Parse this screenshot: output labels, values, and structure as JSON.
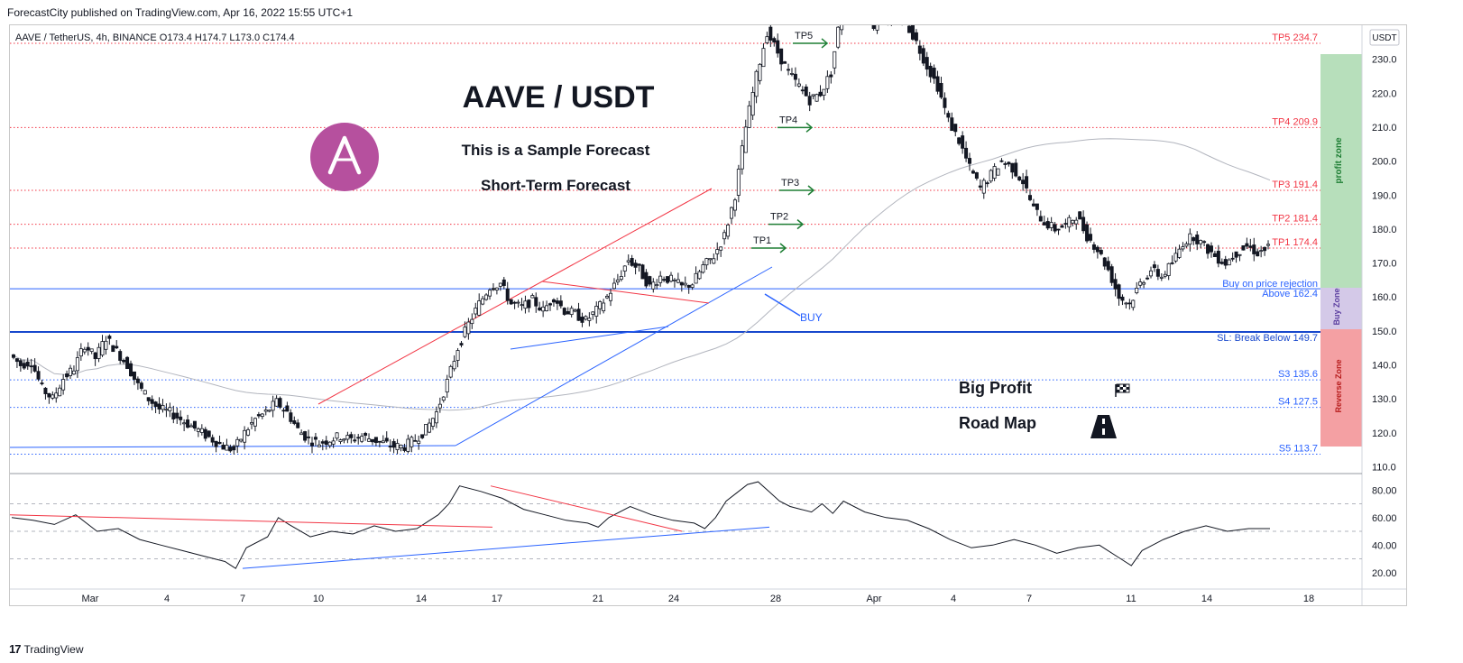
{
  "publisher_line": "ForecastCity published on TradingView.com, Apr 16, 2022 15:55 UTC+1",
  "symbol_header": "AAVE / TetherUS, 4h, BINANCE  O173.4  H174.7  L173.0  C174.4",
  "currency_badge": "USDT",
  "footer_brand": "TradingView",
  "colors": {
    "up": "#131722",
    "down": "#131722",
    "resistance_line": "#f23645",
    "support_line": "#2962ff",
    "tp_arrow": "#1e7e34",
    "profit_zone": "#b7dfbb",
    "buy_zone": "#d4c9e8",
    "reverse_zone": "#f4a0a3",
    "ma_line": "#b2b5be",
    "rsi_line": "#131722",
    "aave_logo": "#b6509e"
  },
  "annotations": {
    "title": "AAVE / USDT",
    "subtitle_1": "This is a Sample Forecast",
    "subtitle_2": "Short-Term Forecast",
    "big_profit": "Big Profit",
    "road_map": "Road Map",
    "buy_label": "BUY",
    "tp_labels": [
      "TP1",
      "TP2",
      "TP3",
      "TP4",
      "TP5"
    ],
    "buy_on_rejection": "Buy on price rejection",
    "above_level": "Above 162.4",
    "sl_text": "SL: Break Below 149.7",
    "zone_profit": "profit zone",
    "zone_buy": "Buy Zone",
    "zone_reverse": "Reverse Zone"
  },
  "chart_data": {
    "type": "candlestick",
    "x_ticks": [
      "Mar",
      "4",
      "7",
      "10",
      "14",
      "17",
      "21",
      "24",
      "28",
      "Apr",
      "4",
      "7",
      "11",
      "14",
      "18"
    ],
    "y_ticks": [
      "230.0",
      "220.0",
      "210.0",
      "200.0",
      "190.0",
      "180.0",
      "170.0",
      "160.0",
      "150.0",
      "140.0",
      "130.0",
      "120.0",
      "110.0"
    ],
    "ylim": [
      108,
      240
    ],
    "levels": [
      {
        "label": "TP5 234.7",
        "value": 234.7,
        "color": "#f23645",
        "style": "dotted"
      },
      {
        "label": "TP4 209.9",
        "value": 209.9,
        "color": "#f23645",
        "style": "dotted"
      },
      {
        "label": "TP3 191.4",
        "value": 191.4,
        "color": "#f23645",
        "style": "dotted"
      },
      {
        "label": "TP2 181.4",
        "value": 181.4,
        "color": "#f23645",
        "style": "dotted"
      },
      {
        "label": "TP1 174.4",
        "value": 174.4,
        "color": "#f23645",
        "style": "dotted"
      },
      {
        "label": "",
        "value": 162.4,
        "color": "#2962ff",
        "style": "solid"
      },
      {
        "label": "",
        "value": 149.7,
        "color": "#1848cc",
        "style": "thick"
      },
      {
        "label": "S3 135.6",
        "value": 135.6,
        "color": "#2962ff",
        "style": "dotted"
      },
      {
        "label": "S4 127.5",
        "value": 127.5,
        "color": "#2962ff",
        "style": "dotted"
      },
      {
        "label": "S5 113.7",
        "value": 113.7,
        "color": "#2962ff",
        "style": "dotted"
      }
    ],
    "price_path": [
      [
        0,
        143
      ],
      [
        2,
        140
      ],
      [
        4,
        141
      ],
      [
        6,
        133
      ],
      [
        8,
        130
      ],
      [
        10,
        136
      ],
      [
        12,
        139
      ],
      [
        14,
        146
      ],
      [
        16,
        142
      ],
      [
        18,
        148
      ],
      [
        20,
        144
      ],
      [
        22,
        140
      ],
      [
        24,
        134
      ],
      [
        26,
        130
      ],
      [
        28,
        127
      ],
      [
        30,
        126
      ],
      [
        32,
        124
      ],
      [
        34,
        122
      ],
      [
        36,
        120
      ],
      [
        38,
        118
      ],
      [
        40,
        116
      ],
      [
        42,
        115
      ],
      [
        44,
        120
      ],
      [
        46,
        124
      ],
      [
        48,
        126
      ],
      [
        50,
        129
      ],
      [
        52,
        126
      ],
      [
        54,
        121
      ],
      [
        56,
        118
      ],
      [
        58,
        117
      ],
      [
        60,
        118
      ],
      [
        62,
        119
      ],
      [
        64,
        118
      ],
      [
        66,
        119
      ],
      [
        68,
        118
      ],
      [
        70,
        117
      ],
      [
        72,
        116
      ],
      [
        74,
        116
      ],
      [
        76,
        118
      ],
      [
        78,
        121
      ],
      [
        80,
        126
      ],
      [
        82,
        135
      ],
      [
        84,
        145
      ],
      [
        86,
        152
      ],
      [
        88,
        158
      ],
      [
        90,
        163
      ],
      [
        92,
        164
      ],
      [
        94,
        158
      ],
      [
        96,
        157
      ],
      [
        98,
        159
      ],
      [
        100,
        156
      ],
      [
        102,
        160
      ],
      [
        104,
        156
      ],
      [
        106,
        155
      ],
      [
        108,
        153
      ],
      [
        110,
        156
      ],
      [
        112,
        160
      ],
      [
        114,
        165
      ],
      [
        116,
        171
      ],
      [
        118,
        168
      ],
      [
        120,
        163
      ],
      [
        122,
        166
      ],
      [
        124,
        165
      ],
      [
        126,
        163
      ],
      [
        128,
        164
      ],
      [
        130,
        169
      ],
      [
        132,
        172
      ],
      [
        134,
        178
      ],
      [
        136,
        190
      ],
      [
        138,
        210
      ],
      [
        140,
        225
      ],
      [
        142,
        238
      ],
      [
        144,
        232
      ],
      [
        146,
        226
      ],
      [
        148,
        222
      ],
      [
        150,
        218
      ],
      [
        152,
        220
      ],
      [
        154,
        226
      ],
      [
        156,
        245
      ],
      [
        158,
        248
      ],
      [
        160,
        245
      ],
      [
        162,
        240
      ],
      [
        164,
        242
      ],
      [
        166,
        243
      ],
      [
        168,
        241
      ],
      [
        170,
        235
      ],
      [
        172,
        228
      ],
      [
        174,
        222
      ],
      [
        176,
        212
      ],
      [
        178,
        206
      ],
      [
        180,
        198
      ],
      [
        182,
        192
      ],
      [
        184,
        196
      ],
      [
        186,
        200
      ],
      [
        188,
        198
      ],
      [
        190,
        194
      ],
      [
        192,
        186
      ],
      [
        194,
        182
      ],
      [
        196,
        180
      ],
      [
        198,
        181
      ],
      [
        200,
        184
      ],
      [
        202,
        178
      ],
      [
        204,
        174
      ],
      [
        206,
        168
      ],
      [
        208,
        160
      ],
      [
        210,
        158
      ],
      [
        212,
        164
      ],
      [
        214,
        168
      ],
      [
        216,
        166
      ],
      [
        218,
        170
      ],
      [
        220,
        176
      ],
      [
        222,
        178
      ],
      [
        224,
        175
      ],
      [
        226,
        172
      ],
      [
        228,
        170
      ],
      [
        230,
        173
      ],
      [
        232,
        175
      ],
      [
        234,
        173
      ],
      [
        236,
        174.4
      ]
    ],
    "rsi": {
      "y_ticks": [
        "80.00",
        "60.00",
        "40.00",
        "20.00"
      ],
      "ylim": [
        10,
        90
      ],
      "guides": [
        70,
        50,
        30
      ],
      "values": [
        [
          0,
          60
        ],
        [
          4,
          58
        ],
        [
          8,
          55
        ],
        [
          12,
          62
        ],
        [
          16,
          50
        ],
        [
          20,
          52
        ],
        [
          24,
          44
        ],
        [
          28,
          40
        ],
        [
          32,
          36
        ],
        [
          36,
          32
        ],
        [
          40,
          28
        ],
        [
          42,
          23
        ],
        [
          44,
          38
        ],
        [
          48,
          46
        ],
        [
          50,
          60
        ],
        [
          52,
          55
        ],
        [
          56,
          46
        ],
        [
          60,
          50
        ],
        [
          64,
          48
        ],
        [
          68,
          54
        ],
        [
          72,
          50
        ],
        [
          76,
          52
        ],
        [
          80,
          62
        ],
        [
          82,
          70
        ],
        [
          84,
          83
        ],
        [
          88,
          79
        ],
        [
          92,
          74
        ],
        [
          96,
          66
        ],
        [
          100,
          62
        ],
        [
          104,
          58
        ],
        [
          108,
          56
        ],
        [
          110,
          53
        ],
        [
          112,
          60
        ],
        [
          116,
          68
        ],
        [
          120,
          62
        ],
        [
          124,
          58
        ],
        [
          128,
          56
        ],
        [
          130,
          52
        ],
        [
          132,
          60
        ],
        [
          134,
          72
        ],
        [
          136,
          78
        ],
        [
          138,
          84
        ],
        [
          140,
          86
        ],
        [
          142,
          79
        ],
        [
          144,
          72
        ],
        [
          146,
          68
        ],
        [
          148,
          66
        ],
        [
          150,
          64
        ],
        [
          152,
          70
        ],
        [
          154,
          63
        ],
        [
          156,
          72
        ],
        [
          160,
          64
        ],
        [
          164,
          60
        ],
        [
          168,
          58
        ],
        [
          172,
          52
        ],
        [
          176,
          44
        ],
        [
          180,
          38
        ],
        [
          184,
          40
        ],
        [
          188,
          44
        ],
        [
          192,
          40
        ],
        [
          196,
          34
        ],
        [
          200,
          38
        ],
        [
          204,
          40
        ],
        [
          208,
          30
        ],
        [
          210,
          25
        ],
        [
          212,
          36
        ],
        [
          216,
          44
        ],
        [
          220,
          50
        ],
        [
          224,
          54
        ],
        [
          228,
          50
        ],
        [
          232,
          52
        ],
        [
          236,
          52
        ]
      ]
    }
  }
}
